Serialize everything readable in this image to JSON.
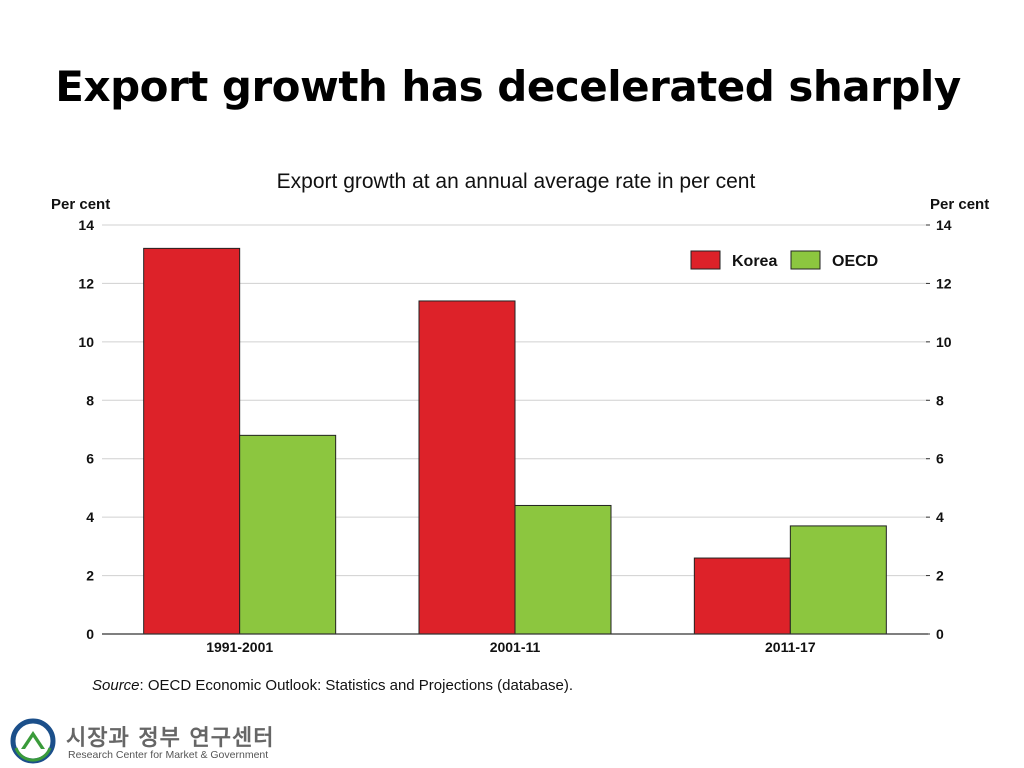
{
  "slide": {
    "title": "Export growth has decelerated sharply",
    "source_label": "Source",
    "source_text": ": OECD Economic Outlook: Statistics and Projections (database)."
  },
  "footer": {
    "org_korean": "시장과 정부 연구센터",
    "org_english": "Research Center for Market & Government"
  },
  "colors": {
    "korea": "#dd2229",
    "oecd": "#8cc63f",
    "gridline": "#d0d0d0",
    "axis": "#333333"
  },
  "chart_data": {
    "type": "bar",
    "title": "Export growth at an annual average rate in per cent",
    "y_unit_left": "Per cent",
    "y_unit_right": "Per cent",
    "categories": [
      "1991-2001",
      "2001-11",
      "2011-17"
    ],
    "series": [
      {
        "name": "Korea",
        "values": [
          13.2,
          11.4,
          2.6
        ]
      },
      {
        "name": "OECD",
        "values": [
          6.8,
          4.4,
          3.7
        ]
      }
    ],
    "ylim": [
      0,
      14
    ],
    "yticks": [
      "0",
      "2",
      "4",
      "6",
      "8",
      "10",
      "12",
      "14"
    ],
    "grid": true,
    "legend_position": "top-right"
  }
}
